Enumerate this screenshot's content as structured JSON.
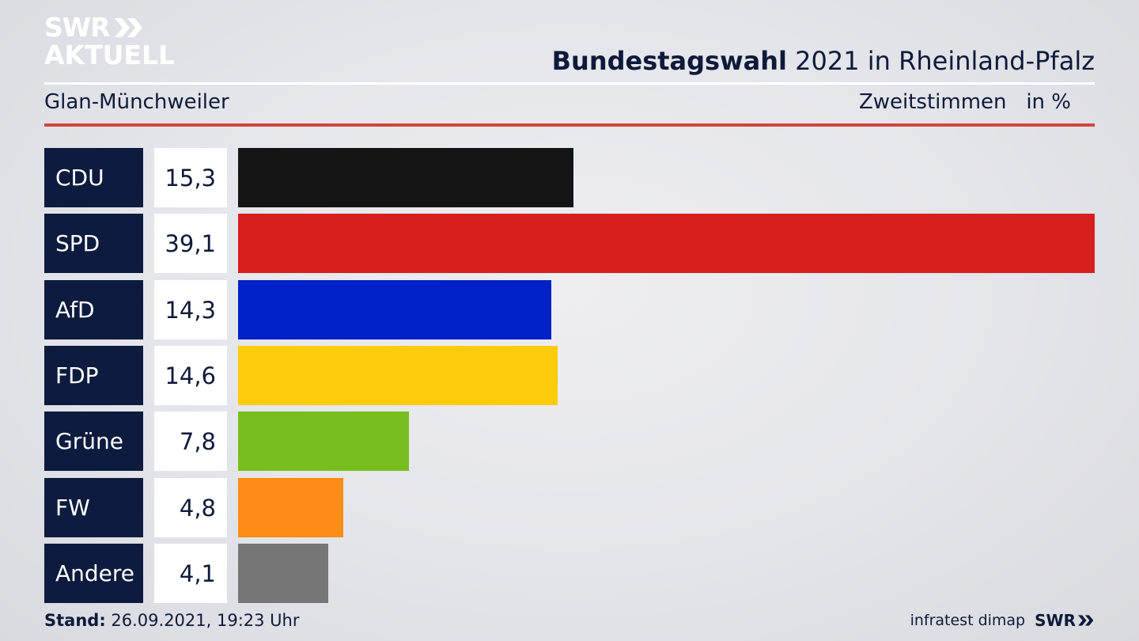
{
  "logo": {
    "line1": "SWR",
    "line2": "AKTUELL"
  },
  "header": {
    "title_bold": "Bundestagswahl",
    "title_rest": " 2021 in Rheinland-Pfalz",
    "subtitle": "Glan-Münchweiler",
    "measure": "Zweitstimmen   in %"
  },
  "footer": {
    "stand_label": "Stand:",
    "stand_value": " 26.09.2021, 19:23 Uhr",
    "source": "infratest dimap",
    "brand": "SWR"
  },
  "chart_data": {
    "type": "bar",
    "orientation": "horizontal",
    "categories": [
      "CDU",
      "SPD",
      "AfD",
      "FDP",
      "Grüne",
      "FW",
      "Andere"
    ],
    "values": [
      15.3,
      39.1,
      14.3,
      14.6,
      7.8,
      4.8,
      4.1
    ],
    "value_labels": [
      "15,3",
      "39,1",
      "14,3",
      "14,6",
      "7,8",
      "4,8",
      "4,1"
    ],
    "colors": [
      "#141414",
      "#d81f1f",
      "#0021c8",
      "#fecc0a",
      "#78be1e",
      "#ff8c14",
      "#767676"
    ],
    "xlim": [
      0,
      39.1
    ]
  }
}
